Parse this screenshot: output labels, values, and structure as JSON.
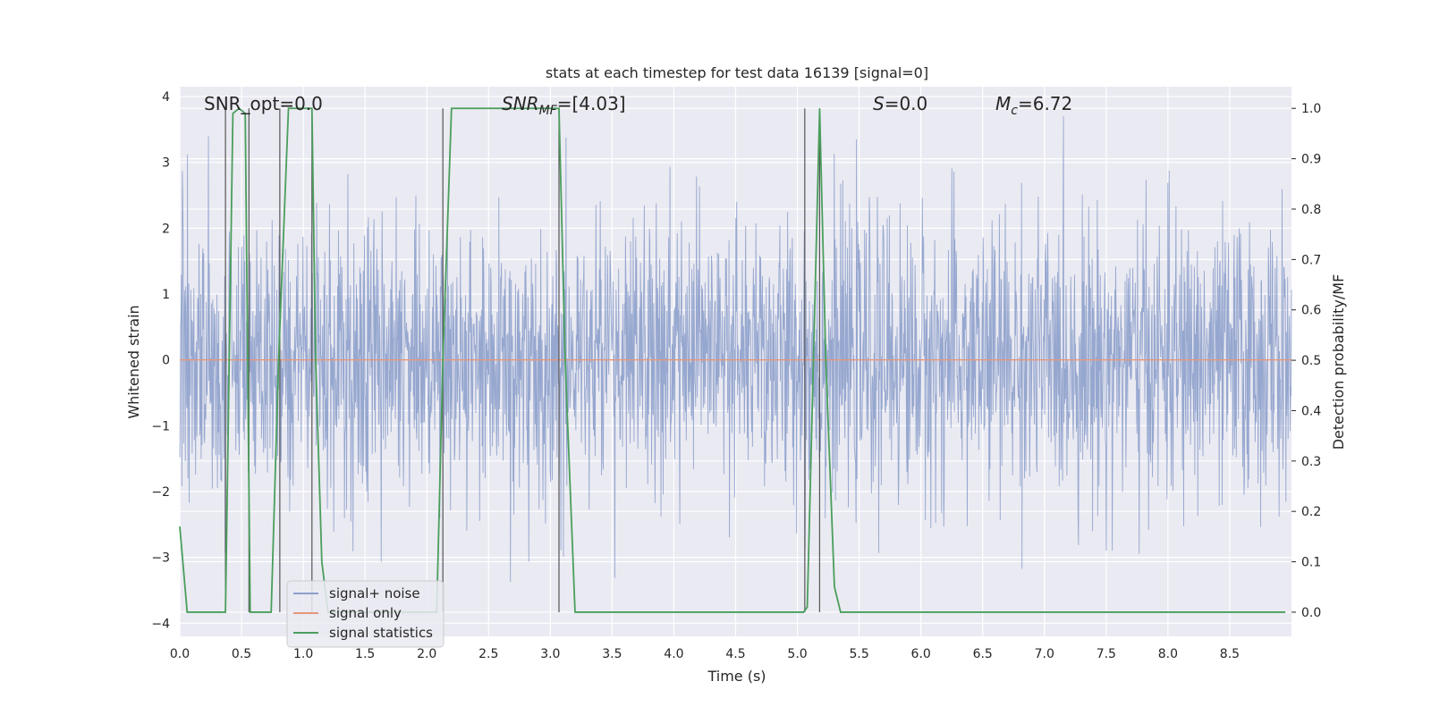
{
  "chart_data": {
    "type": "line",
    "title": "stats at each timestep for test data 16139 [signal=0]",
    "xlabel": "Time (s)",
    "ylabel": "Whitened strain",
    "y2label": "Detection probability/MF",
    "xlim": [
      0.0,
      9.0
    ],
    "ylim": [
      -4.2,
      4.15
    ],
    "y2lim": [
      -0.048,
      1.043
    ],
    "x_ticks": [
      0.0,
      0.5,
      1.0,
      1.5,
      2.0,
      2.5,
      3.0,
      3.5,
      4.0,
      4.5,
      5.0,
      5.5,
      6.0,
      6.5,
      7.0,
      7.5,
      8.0,
      8.5
    ],
    "x_tick_labels": [
      "0.0",
      "0.5",
      "1.0",
      "1.5",
      "2.0",
      "2.5",
      "3.0",
      "3.5",
      "4.0",
      "4.5",
      "5.0",
      "5.5",
      "6.0",
      "6.5",
      "7.0",
      "7.5",
      "8.0",
      "8.5"
    ],
    "y_ticks": [
      -4,
      -3,
      -2,
      -1,
      0,
      1,
      2,
      3,
      4
    ],
    "y_tick_labels": [
      "−4",
      "−3",
      "−2",
      "−1",
      "0",
      "1",
      "2",
      "3",
      "4"
    ],
    "y2_ticks": [
      0.0,
      0.1,
      0.2,
      0.3,
      0.4,
      0.5,
      0.6,
      0.7,
      0.8,
      0.9,
      1.0
    ],
    "y2_tick_labels": [
      "0.0",
      "0.1",
      "0.2",
      "0.3",
      "0.4",
      "0.5",
      "0.6",
      "0.7",
      "0.8",
      "0.9",
      "1.0"
    ],
    "grid": true,
    "legend_position": "lower-left",
    "annotations": {
      "snr_opt": "SNR_opt=0.0",
      "snr_mf_base": "SNR",
      "snr_mf_sub": "MF",
      "snr_mf_rest": "=[4.03]",
      "s_base": "S",
      "s_rest": "=0.0",
      "mc_base": "M",
      "mc_sub": "c",
      "mc_rest": "=6.72"
    },
    "series": [
      {
        "name": "signal+ noise",
        "color": "#8da0cb",
        "description_values": "whitened gaussian noise, amplitude within about -3.9 to 3.7"
      },
      {
        "name": "signal only",
        "color": "#e5967a",
        "x": [
          0.0,
          9.0
        ],
        "y": [
          0.0,
          0.0
        ]
      },
      {
        "name": "signal statistics",
        "color": "#4a9e5c",
        "axis": "right",
        "x": [
          0.0,
          0.06,
          0.1,
          0.37,
          0.43,
          0.48,
          0.53,
          0.57,
          0.62,
          0.74,
          0.8,
          0.88,
          1.07,
          1.1,
          1.15,
          1.2,
          2.08,
          2.13,
          2.2,
          3.07,
          3.12,
          3.2,
          3.5,
          5.05,
          5.08,
          5.13,
          5.18,
          5.23,
          5.3,
          5.35,
          8.95
        ],
        "y": [
          0.17,
          0.0,
          0.0,
          0.0,
          0.99,
          1.0,
          0.99,
          0.0,
          0.0,
          0.0,
          0.5,
          1.0,
          1.0,
          0.5,
          0.1,
          0.0,
          0.0,
          0.5,
          1.0,
          1.0,
          0.5,
          0.0,
          0.0,
          0.0,
          0.01,
          0.5,
          1.0,
          0.5,
          0.05,
          0.0,
          0.0
        ]
      }
    ],
    "detection_markers_x": [
      0.37,
      0.56,
      0.81,
      1.07,
      2.13,
      3.07,
      5.06,
      5.18
    ]
  }
}
